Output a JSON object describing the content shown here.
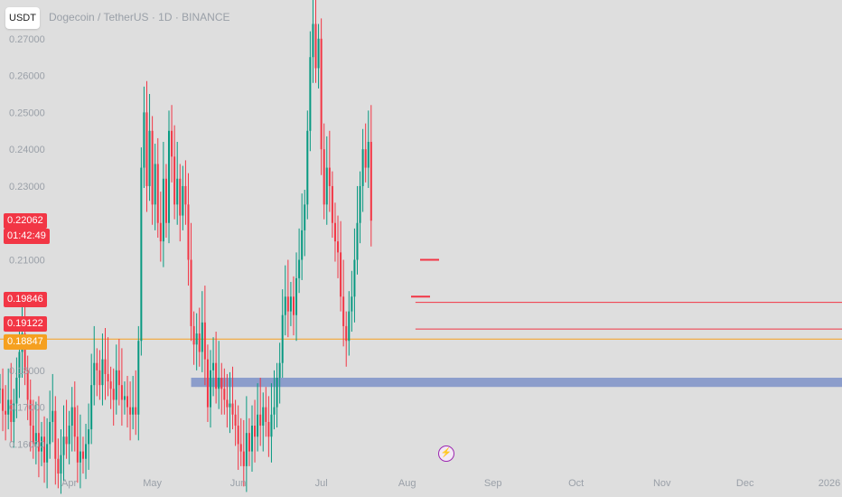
{
  "header": {
    "currency": "USDT",
    "title": "Dogecoin / TetherUS · 1D · BINANCE"
  },
  "badges": {
    "current_price": "0.22062",
    "countdown": "01:42:49",
    "level_1": "0.19846",
    "level_2": "0.19122",
    "level_3": "0.18847"
  },
  "colors": {
    "up": "#089981",
    "down": "#f23645",
    "orange": "#f5a020",
    "zone": "#7e92c8",
    "axis_text": "#9aa0a8"
  },
  "chart_data": {
    "type": "candlestick",
    "title": "Dogecoin / TetherUS · 1D · BINANCE",
    "ylim": [
      0.1525,
      0.2805
    ],
    "y_ticks": [
      0.16,
      0.17,
      0.18,
      0.21,
      0.23,
      0.24,
      0.25,
      0.26,
      0.27
    ],
    "x_ticks": [
      "Apr",
      "May",
      "Jun",
      "Jul",
      "Aug",
      "Sep",
      "Oct",
      "Nov",
      "Dec",
      "2026"
    ],
    "x_tick_dates": [
      "2025-04-01",
      "2025-05-01",
      "2025-06-01",
      "2025-07-01",
      "2025-08-01",
      "2025-09-01",
      "2025-10-01",
      "2025-11-01",
      "2025-12-01",
      "2026-01-01"
    ],
    "x_range": [
      "2025-03-07",
      "2026-01-05"
    ],
    "first_candle_date": "2025-03-07",
    "candles_close": [
      0.175,
      0.169,
      0.168,
      0.172,
      0.166,
      0.171,
      0.178,
      0.185,
      0.19,
      0.18,
      0.172,
      0.165,
      0.16,
      0.163,
      0.158,
      0.162,
      0.155,
      0.16,
      0.166,
      0.169,
      0.156,
      0.152,
      0.157,
      0.162,
      0.16,
      0.165,
      0.17,
      0.162,
      0.155,
      0.158,
      0.156,
      0.16,
      0.164,
      0.176,
      0.182,
      0.18,
      0.176,
      0.183,
      0.179,
      0.177,
      0.175,
      0.172,
      0.18,
      0.176,
      0.172,
      0.173,
      0.17,
      0.168,
      0.17,
      0.168,
      0.188,
      0.235,
      0.25,
      0.23,
      0.245,
      0.225,
      0.236,
      0.22,
      0.215,
      0.232,
      0.22,
      0.245,
      0.238,
      0.225,
      0.232,
      0.222,
      0.23,
      0.225,
      0.21,
      0.192,
      0.187,
      0.19,
      0.185,
      0.193,
      0.183,
      0.17,
      0.18,
      0.182,
      0.175,
      0.178,
      0.175,
      0.172,
      0.17,
      0.171,
      0.168,
      0.165,
      0.16,
      0.158,
      0.154,
      0.163,
      0.158,
      0.165,
      0.162,
      0.168,
      0.165,
      0.17,
      0.166,
      0.162,
      0.168,
      0.17,
      0.178,
      0.182,
      0.195,
      0.2,
      0.196,
      0.2,
      0.195,
      0.205,
      0.21,
      0.218,
      0.225,
      0.245,
      0.265,
      0.274,
      0.262,
      0.27,
      0.24,
      0.225,
      0.235,
      0.23,
      0.22,
      0.215,
      0.212,
      0.2,
      0.192,
      0.188,
      0.196,
      0.2,
      0.21,
      0.22,
      0.23,
      0.24,
      0.235,
      0.242,
      0.22062
    ],
    "price_lines": [
      {
        "label": "0.19846",
        "value": 0.19846,
        "color": "red",
        "from_date": "2025-08-04"
      },
      {
        "label": "0.19122",
        "value": 0.19122,
        "color": "red",
        "from_date": "2025-08-04"
      },
      {
        "label": "0.18847",
        "value": 0.18847,
        "color": "orange",
        "from_date": "2025-03-07"
      }
    ],
    "zone": {
      "from_date": "2025-05-15",
      "to_date": "2026-01-05",
      "low": 0.1755,
      "high": 0.178
    },
    "current_price": 0.22062
  }
}
